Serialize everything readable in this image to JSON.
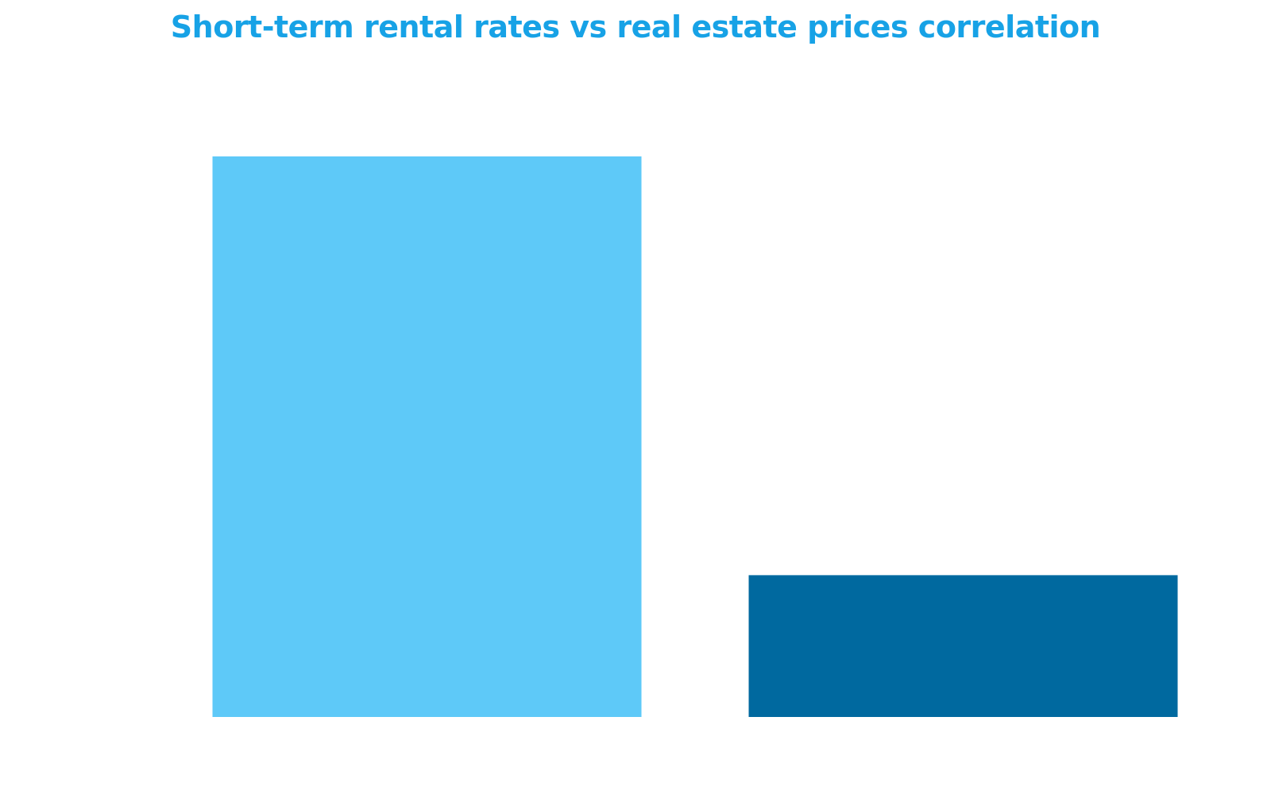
{
  "chart_data": {
    "type": "bar",
    "title": "Short-term rental rates vs real estate prices correlation",
    "categories": [
      "",
      ""
    ],
    "values": [
      100,
      25.3
    ],
    "colors": [
      "#5ec9f8",
      "#00699f"
    ],
    "title_color": "#17a2e6",
    "ylim": [
      0,
      100
    ],
    "xlabel": "",
    "ylabel": "",
    "grid": false,
    "legend": "none"
  }
}
